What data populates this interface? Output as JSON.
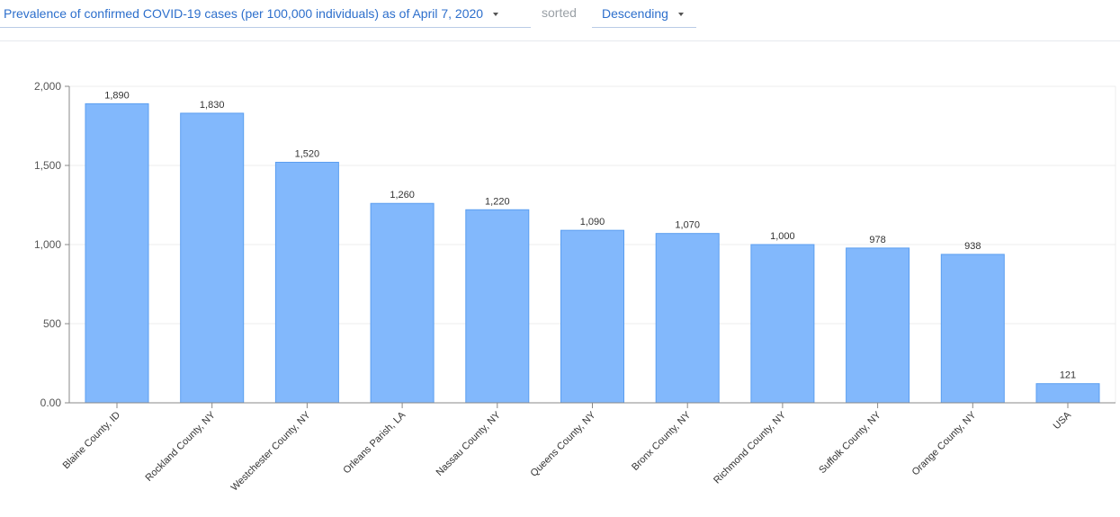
{
  "toolbar": {
    "metric_label": "Prevalence of confirmed COVID-19 cases (per 100,000 individuals) as of April 7, 2020",
    "sorted_label": "sorted",
    "order_label": "Descending"
  },
  "chart_data": {
    "type": "bar",
    "title": "",
    "xlabel": "",
    "ylabel": "",
    "ylim": [
      0,
      2000
    ],
    "yticks": [
      0,
      500,
      1000,
      1500,
      2000
    ],
    "ytick_labels": [
      "0.00",
      "500",
      "1,000",
      "1,500",
      "2,000"
    ],
    "grid": true,
    "bar_color": "#82b8fc",
    "bar_edge_color": "#5b9ef0",
    "categories": [
      "Blaine County, ID",
      "Rockland County, NY",
      "Westchester County, NY",
      "Orleans Parish, LA",
      "Nassau County, NY",
      "Queens County, NY",
      "Bronx County, NY",
      "Richmond County, NY",
      "Suffolk County, NY",
      "Orange County, NY",
      "USA"
    ],
    "values": [
      1890,
      1830,
      1520,
      1260,
      1220,
      1090,
      1070,
      1000,
      978,
      938,
      121
    ],
    "value_labels": [
      "1,890",
      "1,830",
      "1,520",
      "1,260",
      "1,220",
      "1,090",
      "1,070",
      "1,000",
      "978",
      "938",
      "121"
    ]
  }
}
